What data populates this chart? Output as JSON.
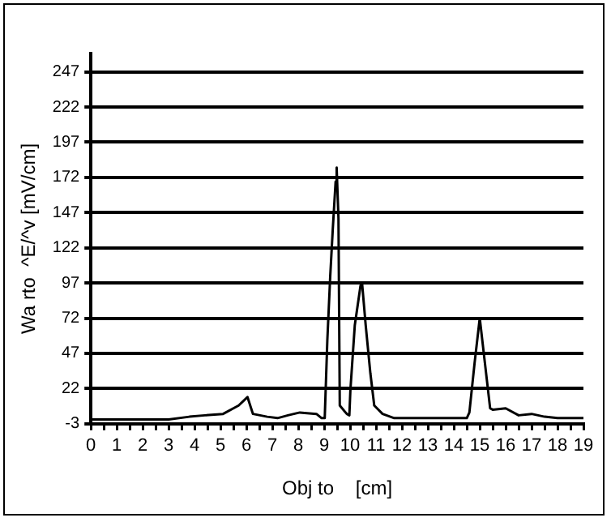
{
  "chart_data": {
    "type": "line",
    "xlabel": "Obj to    [cm]",
    "ylabel": "Wa rto  ^E/^v [mV/cm]",
    "x": [
      0,
      1,
      2,
      3,
      3.8,
      4.4,
      5.1,
      5.7,
      6.04,
      6.25,
      6.8,
      7.2,
      7.6,
      8.06,
      8.7,
      8.9,
      9.02,
      9.12,
      9.23,
      9.33,
      9.44,
      9.48,
      9.55,
      9.6,
      9.87,
      9.97,
      10.01,
      10.18,
      10.4,
      10.46,
      10.6,
      10.78,
      10.93,
      11.25,
      11.7,
      12,
      13,
      14,
      14.5,
      14.6,
      14.8,
      15,
      15.2,
      15.4,
      15.5,
      16,
      16.5,
      17,
      17.5,
      18,
      19
    ],
    "series": [
      {
        "color": "#000000",
        "values": [
          0,
          0,
          0,
          0,
          2,
          3,
          4,
          10,
          16,
          4,
          2,
          1,
          3,
          5,
          4,
          1,
          1,
          56,
          101,
          135,
          169,
          179,
          143,
          10,
          4,
          3,
          21,
          67,
          95,
          97,
          67,
          33,
          10,
          4,
          1,
          1,
          1,
          1,
          1,
          5,
          40,
          72,
          40,
          8,
          7,
          8,
          3,
          4,
          2,
          1,
          1
        ]
      }
    ],
    "xlim": [
      0,
      19
    ],
    "xticks": [
      0,
      {
        "value": 0.5,
        "label": null
      },
      1,
      {
        "value": 1.5,
        "label": null
      },
      2,
      {
        "value": 2.5,
        "label": null
      },
      3,
      {
        "value": 3.5,
        "label": null
      },
      4,
      {
        "value": 4.5,
        "label": null
      },
      5,
      {
        "value": 5.5,
        "label": null
      },
      6,
      {
        "value": 6.5,
        "label": null
      },
      7,
      {
        "value": 7.5,
        "label": null
      },
      8,
      {
        "value": 8.5,
        "label": null
      },
      9,
      {
        "value": 9.5,
        "label": null
      },
      10,
      {
        "value": 10.5,
        "label": null
      },
      11,
      {
        "value": 11.5,
        "label": null
      },
      12,
      {
        "value": 12.5,
        "label": null
      },
      13,
      {
        "value": 13.5,
        "label": null
      },
      14,
      {
        "value": 14.5,
        "label": null
      },
      15,
      {
        "value": 15.5,
        "label": null
      },
      16,
      {
        "value": 16.5,
        "label": null
      },
      17,
      {
        "value": 17.5,
        "label": null
      },
      18,
      {
        "value": 18.5,
        "label": null
      },
      19
    ],
    "ylim": [
      -3,
      260
    ],
    "yticks": [
      -3,
      22,
      47,
      72,
      97,
      122,
      147,
      172,
      197,
      222,
      247
    ],
    "grid": "y",
    "legend": false,
    "marker": "none",
    "line_style": "solid"
  }
}
